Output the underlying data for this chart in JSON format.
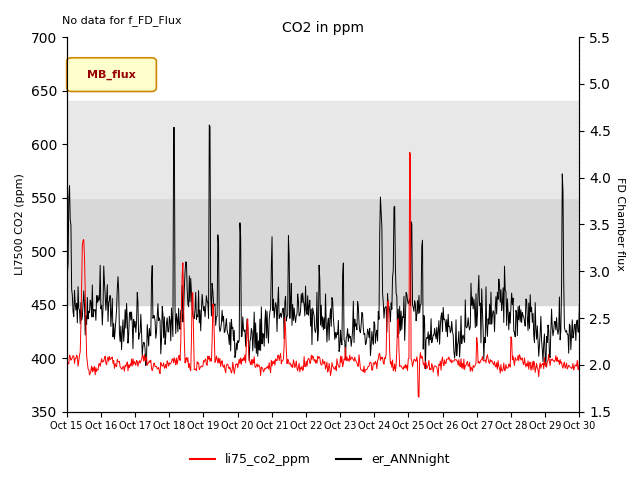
{
  "title": "CO2 in ppm",
  "ylabel_left": "LI7500 CO2 (ppm)",
  "ylabel_right": "FD Chamber flux",
  "ylim_left": [
    350,
    700
  ],
  "ylim_right": [
    1.5,
    5.5
  ],
  "yticks_left": [
    350,
    400,
    450,
    500,
    550,
    600,
    650,
    700
  ],
  "yticks_right": [
    1.5,
    2.0,
    2.5,
    3.0,
    3.5,
    4.0,
    4.5,
    5.0,
    5.5
  ],
  "xtick_labels": [
    "Oct 15",
    "Oct 16",
    "Oct 17",
    "Oct 18",
    "Oct 19",
    "Oct 20",
    "Oct 21",
    "Oct 22",
    "Oct 23",
    "Oct 24",
    "Oct 25",
    "Oct 26",
    "Oct 27",
    "Oct 28",
    "Oct 29",
    "Oct 30"
  ],
  "shaded_band_lo": 450,
  "shaded_band_hi": 550,
  "shaded_band2_lo": 550,
  "shaded_band2_hi": 640,
  "nodata_text": "No data for f_FD_Flux",
  "mb_flux_label": "MB_flux",
  "legend_entries": [
    "li75_co2_ppm",
    "er_ANNnight"
  ],
  "background_color": "#ffffff",
  "shaded_color1": "#d8d8d8",
  "shaded_color2": "#e8e8e8"
}
